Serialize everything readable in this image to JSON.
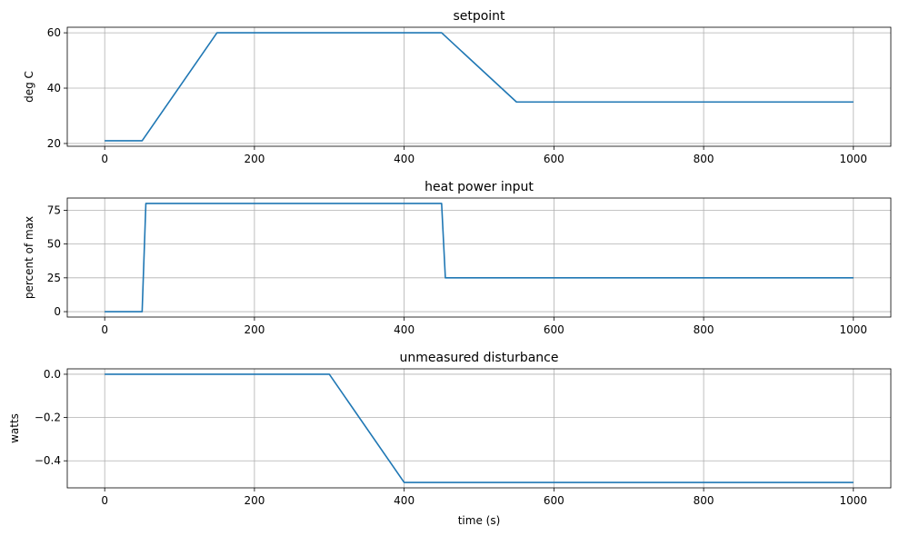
{
  "chart_data": [
    {
      "type": "line",
      "title": "setpoint",
      "xlabel": "",
      "ylabel": "deg C",
      "xlim": [
        -50,
        1050
      ],
      "ylim": [
        19,
        62
      ],
      "xticks": [
        0,
        200,
        400,
        600,
        800,
        1000
      ],
      "xtick_labels": [
        "0",
        "200",
        "400",
        "600",
        "800",
        "1000"
      ],
      "yticks": [
        20,
        40,
        60
      ],
      "ytick_labels": [
        "20",
        "40",
        "60"
      ],
      "grid": true,
      "series": [
        {
          "color": "#1f77b4",
          "x": [
            0,
            50,
            150,
            450,
            550,
            1000
          ],
          "y": [
            21,
            21,
            60,
            60,
            35,
            35
          ]
        }
      ]
    },
    {
      "type": "line",
      "title": "heat power input",
      "xlabel": "",
      "ylabel": "percent of max",
      "xlim": [
        -50,
        1050
      ],
      "ylim": [
        -4,
        84
      ],
      "xticks": [
        0,
        200,
        400,
        600,
        800,
        1000
      ],
      "xtick_labels": [
        "0",
        "200",
        "400",
        "600",
        "800",
        "1000"
      ],
      "yticks": [
        0,
        25,
        50,
        75
      ],
      "ytick_labels": [
        "0",
        "25",
        "50",
        "75"
      ],
      "grid": true,
      "series": [
        {
          "color": "#1f77b4",
          "x": [
            0,
            50,
            55,
            450,
            455,
            1000
          ],
          "y": [
            0,
            0,
            80,
            80,
            25,
            25
          ]
        }
      ]
    },
    {
      "type": "line",
      "title": "unmeasured disturbance",
      "xlabel": "time (s)",
      "ylabel": "watts",
      "xlim": [
        -50,
        1050
      ],
      "ylim": [
        -0.525,
        0.025
      ],
      "xticks": [
        0,
        200,
        400,
        600,
        800,
        1000
      ],
      "xtick_labels": [
        "0",
        "200",
        "400",
        "600",
        "800",
        "1000"
      ],
      "yticks": [
        0.0,
        -0.2,
        -0.4
      ],
      "ytick_labels": [
        "0.0",
        "−0.2",
        "−0.4"
      ],
      "grid": true,
      "series": [
        {
          "color": "#1f77b4",
          "x": [
            0,
            300,
            400,
            1000
          ],
          "y": [
            0,
            0,
            -0.5,
            -0.5
          ]
        }
      ]
    }
  ]
}
